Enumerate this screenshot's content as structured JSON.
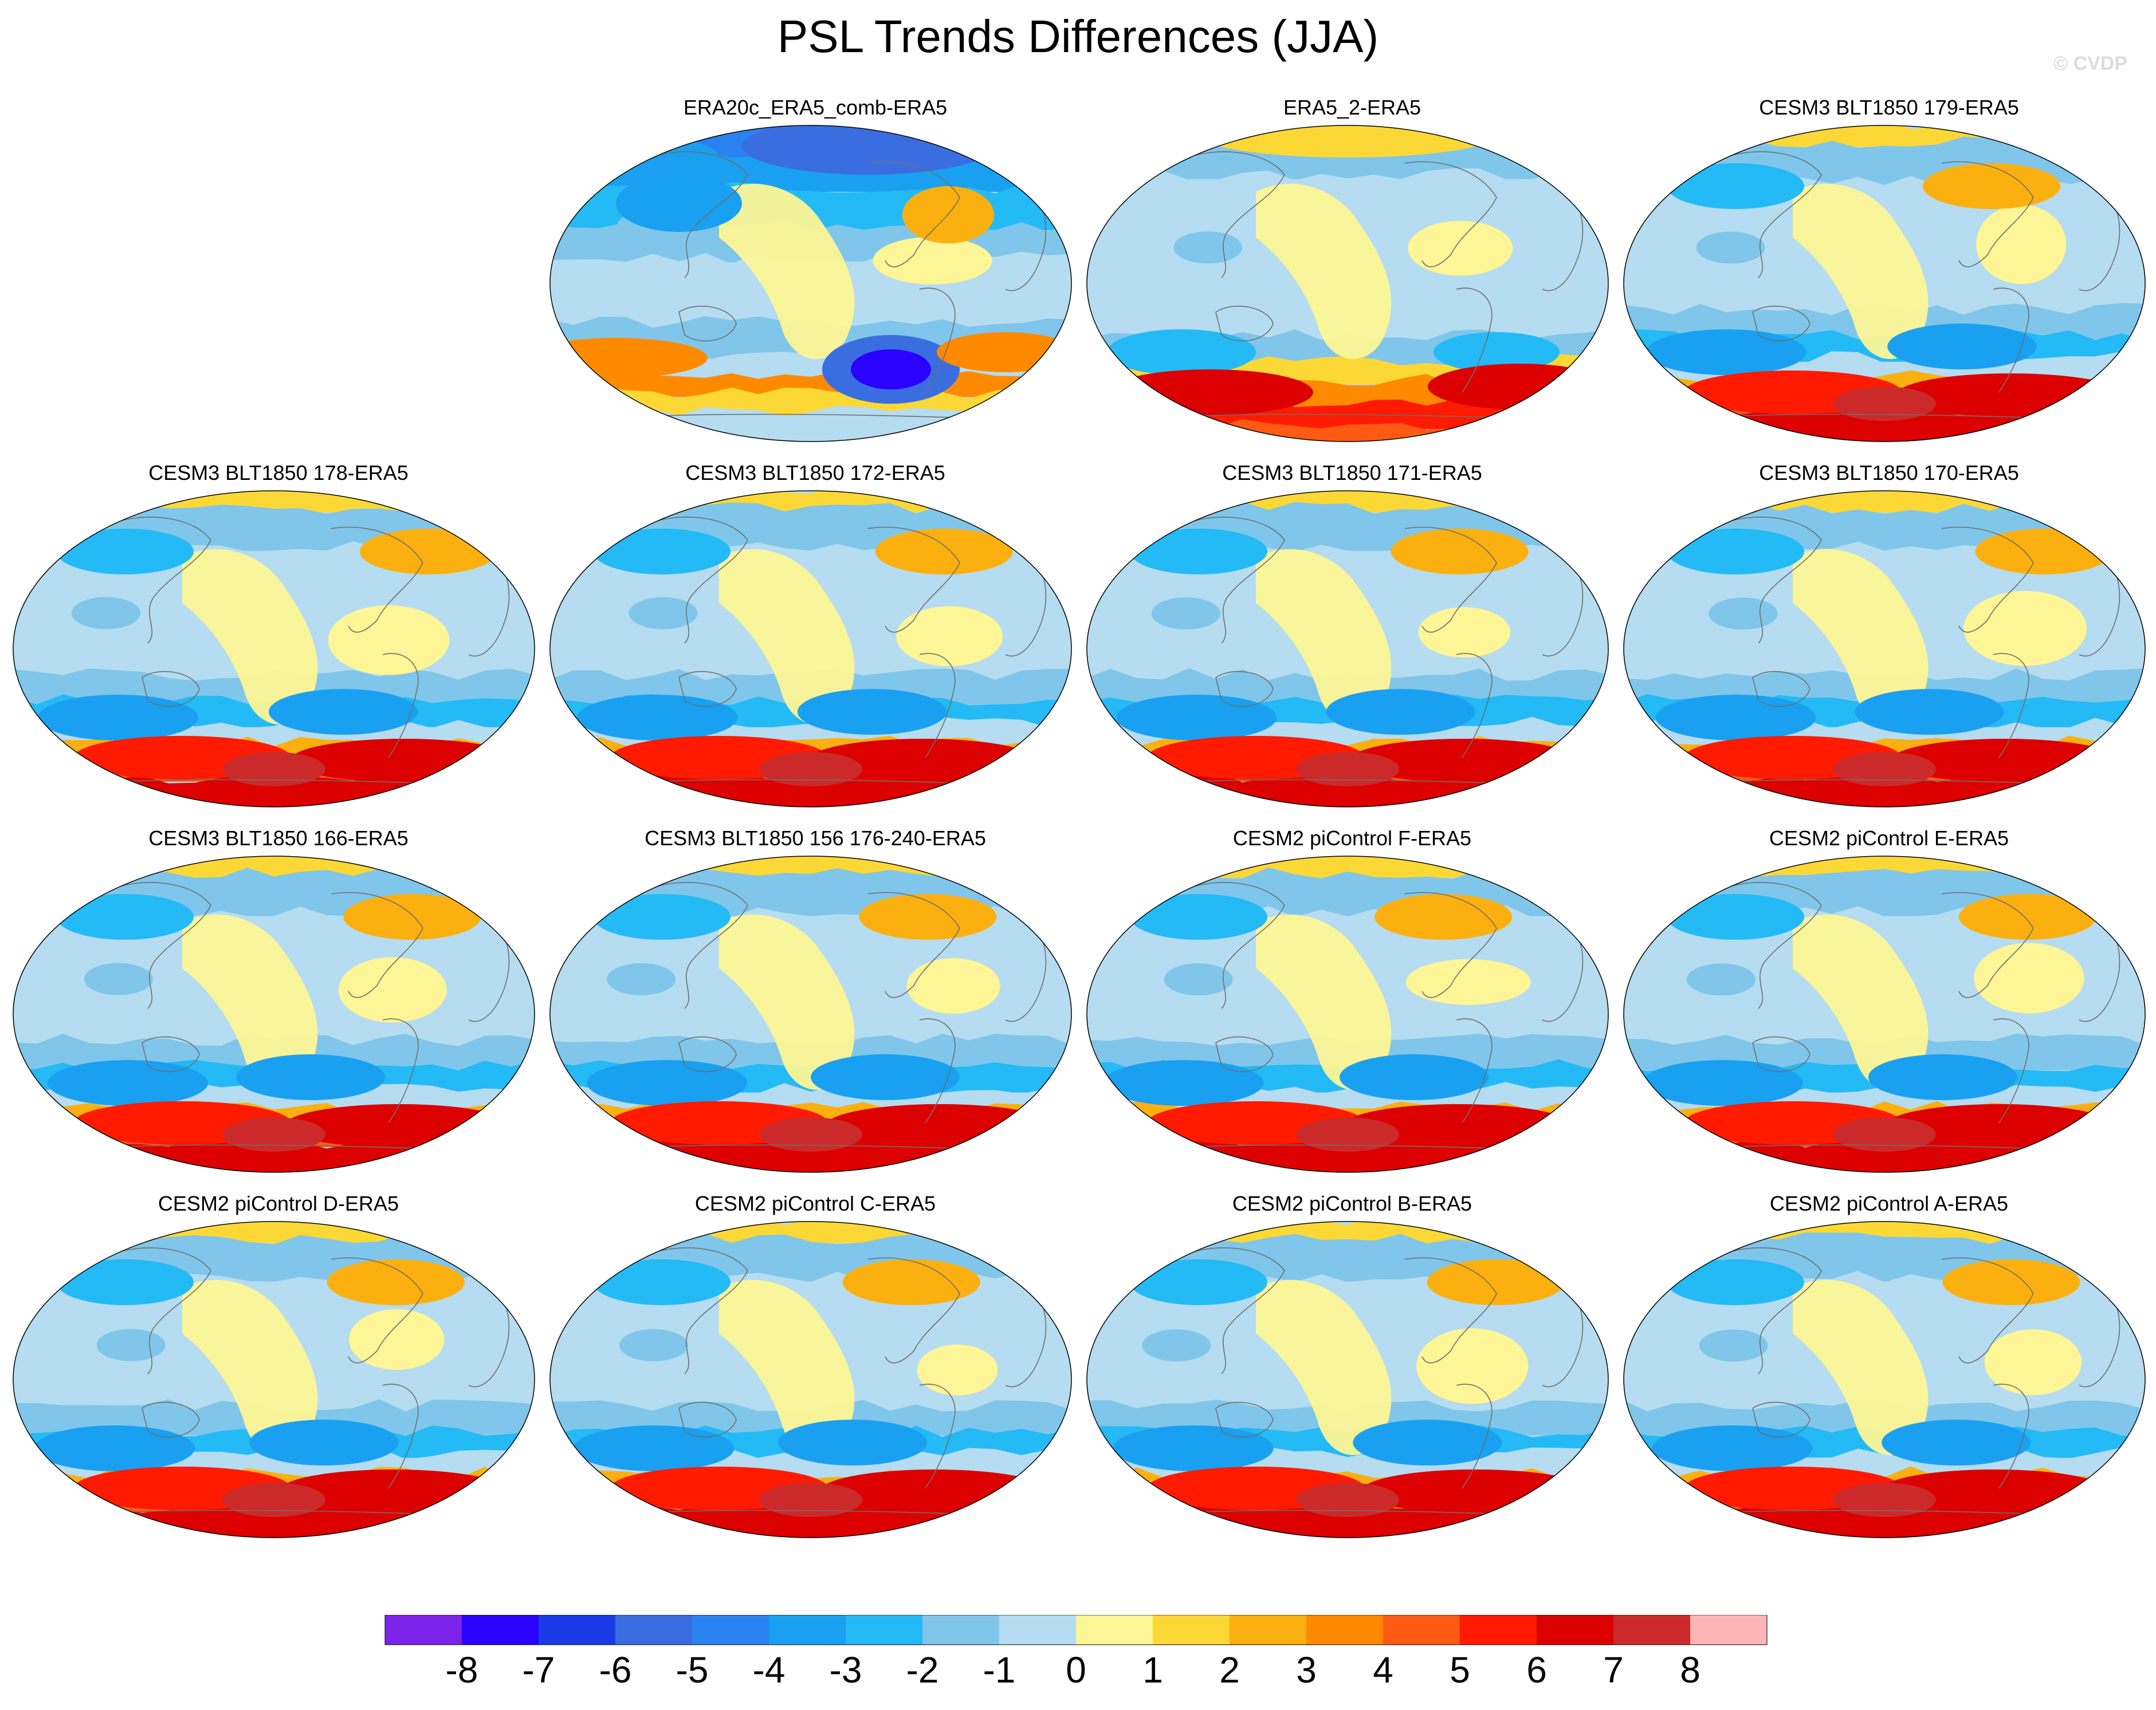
{
  "title": "PSL Trends Differences (JJA)",
  "credit": "© CVDP",
  "colors": {
    "levels": [
      "#7b23e8",
      "#2a00ff",
      "#1a3ae6",
      "#3a6ee0",
      "#2a82f0",
      "#1aa0f0",
      "#24baf5",
      "#80c6ea",
      "#b5dcf0",
      "#fdf596",
      "#fbd835",
      "#fbb010",
      "#ff8a00",
      "#ff5a14",
      "#ff1a00",
      "#dd0000",
      "#cc2a2a",
      "#ffb5b5"
    ],
    "land_outline": "#6e6e6e"
  },
  "colorbar": {
    "labels": [
      "-8",
      "-7",
      "-6",
      "-5",
      "-4",
      "-3",
      "-2",
      "-1",
      "0",
      "1",
      "2",
      "3",
      "4",
      "5",
      "6",
      "7",
      "8"
    ]
  },
  "panels": [
    {
      "title": "ERA20c_ERA5_comb-ERA5",
      "pattern": "era20c"
    },
    {
      "title": "ERA5_2-ERA5",
      "pattern": "era5"
    },
    {
      "title": "CESM3 BLT1850 179-ERA5",
      "pattern": "model"
    },
    {
      "title": "CESM3 BLT1850 178-ERA5",
      "pattern": "model"
    },
    {
      "title": "CESM3 BLT1850 172-ERA5",
      "pattern": "model"
    },
    {
      "title": "CESM3 BLT1850 171-ERA5",
      "pattern": "model"
    },
    {
      "title": "CESM3 BLT1850 170-ERA5",
      "pattern": "model"
    },
    {
      "title": "CESM3 BLT1850 166-ERA5",
      "pattern": "model"
    },
    {
      "title": "CESM3 BLT1850 156 176-240-ERA5",
      "pattern": "model"
    },
    {
      "title": "CESM2 piControl F-ERA5",
      "pattern": "model"
    },
    {
      "title": "CESM2 piControl E-ERA5",
      "pattern": "model"
    },
    {
      "title": "CESM2 piControl D-ERA5",
      "pattern": "model"
    },
    {
      "title": "CESM2 piControl C-ERA5",
      "pattern": "model"
    },
    {
      "title": "CESM2 piControl B-ERA5",
      "pattern": "model"
    },
    {
      "title": "CESM2 piControl A-ERA5",
      "pattern": "model"
    }
  ]
}
